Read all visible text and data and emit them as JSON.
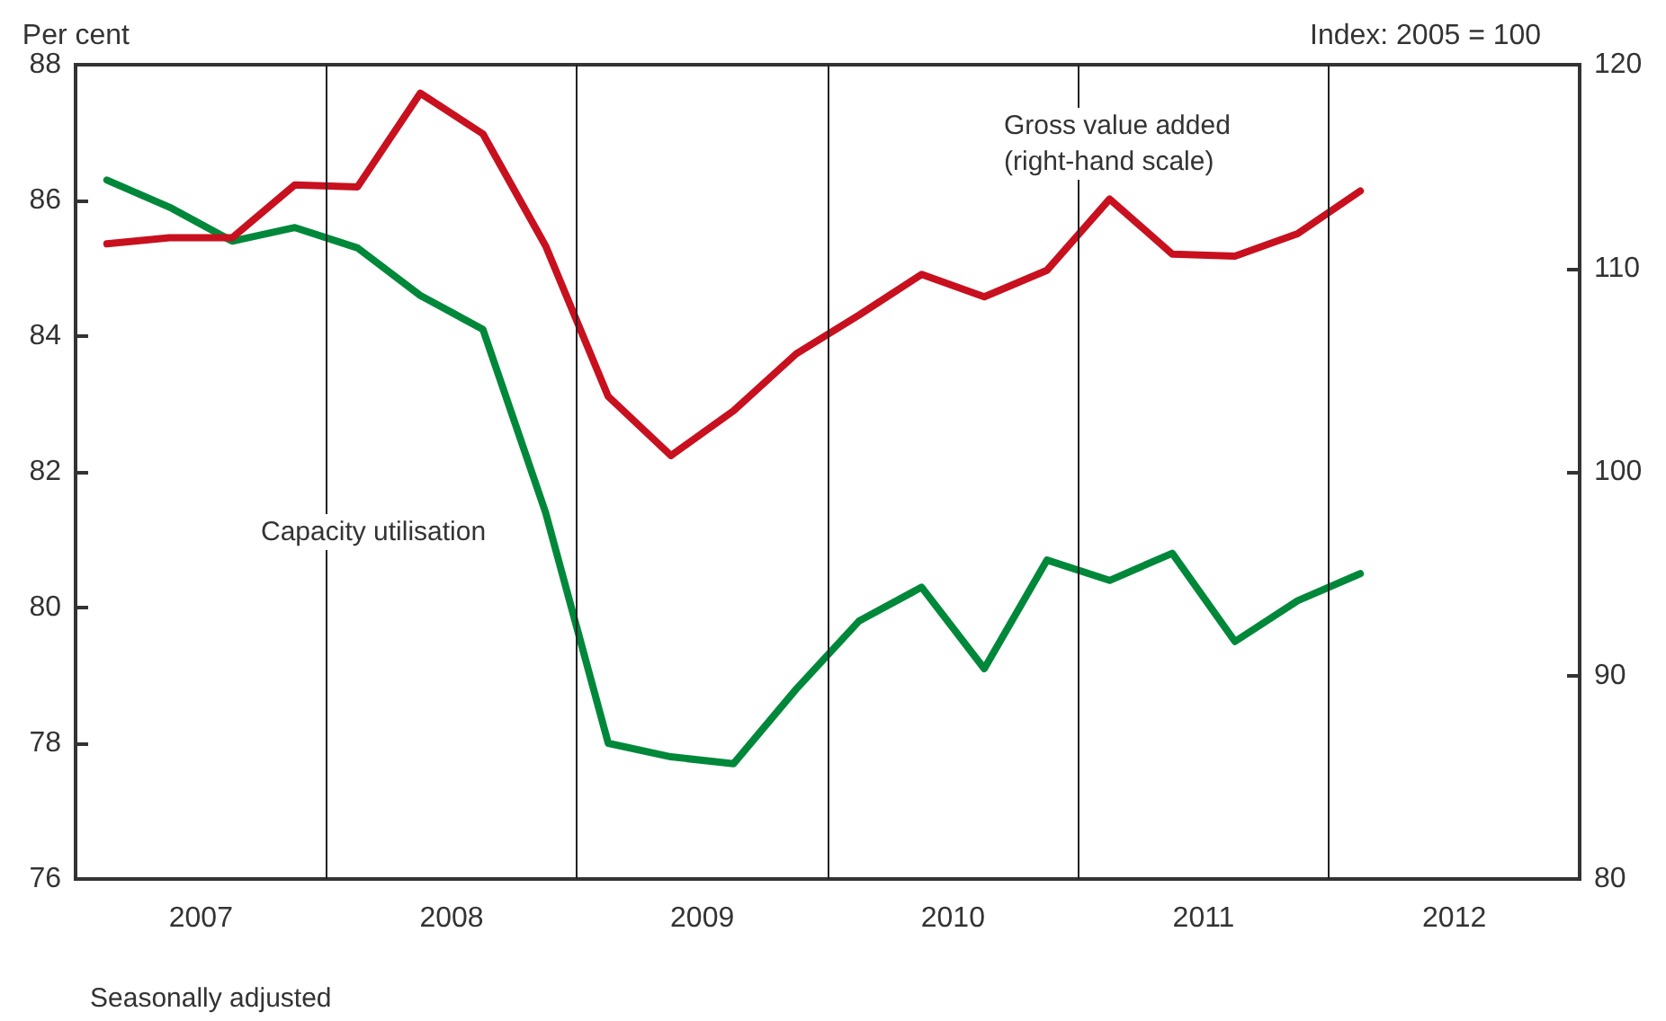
{
  "chart_data": {
    "type": "line",
    "ylabel": "Per cent",
    "y2label": "Index: 2005 = 100",
    "annotations": [
      "Seasonally adjusted"
    ],
    "x": [
      2007.125,
      2007.375,
      2007.625,
      2007.875,
      2008.125,
      2008.375,
      2008.625,
      2008.875,
      2009.125,
      2009.375,
      2009.625,
      2009.875,
      2010.125,
      2010.375,
      2010.625,
      2010.875,
      2011.125,
      2011.375,
      2011.625,
      2011.875,
      2012.125
    ],
    "series": [
      {
        "name": "Capacity utilisation",
        "color": "#00883a",
        "values": [
          86.3,
          85.9,
          85.4,
          85.6,
          85.3,
          84.6,
          84.1,
          81.4,
          78.0,
          77.8,
          77.7,
          78.8,
          79.8,
          80.3,
          79.1,
          80.7,
          80.4,
          80.8,
          79.5,
          80.1,
          80.5
        ]
      },
      {
        "name": "Gross value added (right-hand scale)",
        "color": "#c8101e",
        "axis": "y2",
        "values": [
          111.2,
          111.5,
          111.5,
          114.1,
          114.0,
          118.6,
          116.6,
          111.1,
          103.7,
          100.8,
          103.0,
          105.8,
          107.7,
          109.7,
          108.6,
          109.9,
          113.4,
          110.7,
          110.6,
          111.7,
          113.8
        ]
      }
    ],
    "xlim": [
      2007,
      2013
    ],
    "xticks": [
      {
        "value": 2007.5,
        "label": "2007"
      },
      {
        "value": 2008.5,
        "label": "2008"
      },
      {
        "value": 2009.5,
        "label": "2009"
      },
      {
        "value": 2010.5,
        "label": "2010"
      },
      {
        "value": 2011.5,
        "label": "2011"
      },
      {
        "value": 2012.5,
        "label": "2012"
      }
    ],
    "ylim": [
      76,
      88
    ],
    "yticks": [
      76,
      78,
      80,
      82,
      84,
      86,
      88
    ],
    "y2lim": [
      80,
      120
    ],
    "y2ticks": [
      80,
      90,
      100,
      110,
      120
    ],
    "ref_lines": [
      {
        "axis": "x",
        "value": 2008,
        "color": "#222222"
      },
      {
        "axis": "x",
        "value": 2009,
        "color": "#222222"
      },
      {
        "axis": "x",
        "value": 2010,
        "color": "#222222"
      },
      {
        "axis": "x",
        "value": 2011,
        "color": "#222222"
      },
      {
        "axis": "x",
        "value": 2012,
        "color": "#222222"
      }
    ],
    "grid": false,
    "legend": false,
    "marker": "none",
    "line_style": "solid"
  }
}
